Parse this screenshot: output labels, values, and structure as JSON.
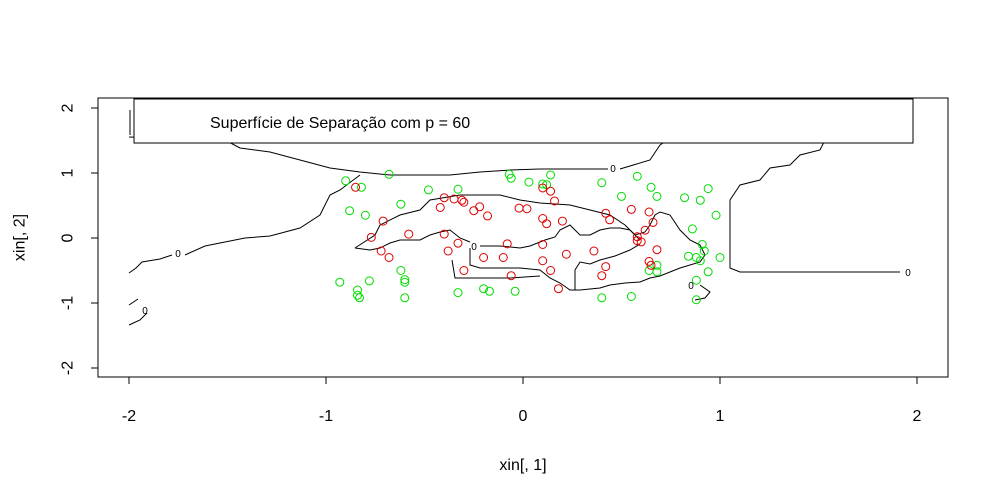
{
  "chart_data": {
    "type": "scatter",
    "title": "",
    "xlabel": "xin[, 1]",
    "ylabel": "xin[, 2]",
    "xlim": [
      -2.0,
      2.0
    ],
    "ylim": [
      -2.0,
      2.0
    ],
    "xticks": [
      "-2",
      "-1",
      "0",
      "1",
      "2"
    ],
    "yticks": [
      "-2",
      "-1",
      "0",
      "1",
      "2"
    ],
    "grid": false,
    "legend": {
      "text": "Superfície de Separação com p = 60",
      "placement": "top-left"
    },
    "contour_level_label": "0",
    "colors": {
      "class_red": "#dd0000",
      "class_green": "#00dd00",
      "contour": "#000000"
    },
    "series": [
      {
        "name": "green",
        "points": [
          [
            -0.9,
            0.88
          ],
          [
            -0.88,
            0.42
          ],
          [
            -0.82,
            0.78
          ],
          [
            -0.68,
            0.98
          ],
          [
            -0.8,
            0.35
          ],
          [
            -0.62,
            0.52
          ],
          [
            -0.48,
            0.74
          ],
          [
            -0.33,
            0.75
          ],
          [
            -0.07,
            0.98
          ],
          [
            -0.06,
            0.92
          ],
          [
            0.03,
            0.86
          ],
          [
            0.1,
            0.83
          ],
          [
            0.12,
            0.82
          ],
          [
            0.14,
            0.97
          ],
          [
            0.4,
            0.85
          ],
          [
            0.5,
            0.64
          ],
          [
            0.58,
            0.95
          ],
          [
            0.65,
            0.78
          ],
          [
            0.68,
            0.64
          ],
          [
            0.82,
            0.62
          ],
          [
            0.9,
            0.58
          ],
          [
            0.94,
            0.76
          ],
          [
            0.98,
            0.35
          ],
          [
            0.86,
            0.14
          ],
          [
            0.88,
            -0.3
          ],
          [
            0.91,
            -0.1
          ],
          [
            0.92,
            -0.2
          ],
          [
            0.94,
            -0.52
          ],
          [
            0.88,
            -0.65
          ],
          [
            0.84,
            -0.28
          ],
          [
            0.9,
            -0.35
          ],
          [
            1.0,
            -0.3
          ],
          [
            0.68,
            -0.42
          ],
          [
            0.68,
            -0.52
          ],
          [
            0.64,
            -0.5
          ],
          [
            -0.93,
            -0.68
          ],
          [
            -0.84,
            -0.8
          ],
          [
            -0.84,
            -0.88
          ],
          [
            -0.83,
            -0.92
          ],
          [
            -0.78,
            -0.66
          ],
          [
            -0.62,
            -0.5
          ],
          [
            -0.6,
            -0.64
          ],
          [
            -0.6,
            -0.68
          ],
          [
            -0.6,
            -0.92
          ],
          [
            -0.33,
            -0.84
          ],
          [
            -0.2,
            -0.78
          ],
          [
            -0.17,
            -0.82
          ],
          [
            -0.04,
            -0.82
          ],
          [
            0.4,
            -0.92
          ],
          [
            0.55,
            -0.9
          ],
          [
            0.88,
            -0.95
          ]
        ]
      },
      {
        "name": "red",
        "points": [
          [
            -0.85,
            0.78
          ],
          [
            -0.71,
            0.26
          ],
          [
            -0.77,
            0.01
          ],
          [
            -0.72,
            -0.2
          ],
          [
            -0.68,
            -0.3
          ],
          [
            -0.58,
            0.06
          ],
          [
            -0.42,
            0.47
          ],
          [
            -0.4,
            0.62
          ],
          [
            -0.35,
            0.6
          ],
          [
            -0.31,
            0.58
          ],
          [
            -0.3,
            0.55
          ],
          [
            -0.4,
            0.06
          ],
          [
            -0.38,
            -0.2
          ],
          [
            -0.33,
            -0.08
          ],
          [
            -0.25,
            0.42
          ],
          [
            -0.22,
            0.48
          ],
          [
            -0.18,
            0.34
          ],
          [
            -0.1,
            -0.3
          ],
          [
            -0.08,
            -0.09
          ],
          [
            -0.06,
            -0.58
          ],
          [
            -0.02,
            0.46
          ],
          [
            0.1,
            0.77
          ],
          [
            0.14,
            0.72
          ],
          [
            0.16,
            0.57
          ],
          [
            0.1,
            0.3
          ],
          [
            0.12,
            0.22
          ],
          [
            0.2,
            0.26
          ],
          [
            0.1,
            -0.1
          ],
          [
            0.1,
            -0.35
          ],
          [
            0.14,
            -0.5
          ],
          [
            0.18,
            -0.78
          ],
          [
            0.22,
            -0.25
          ],
          [
            0.36,
            -0.2
          ],
          [
            0.42,
            0.38
          ],
          [
            0.44,
            0.28
          ],
          [
            0.55,
            0.44
          ],
          [
            0.58,
            0.02
          ],
          [
            0.6,
            -0.06
          ],
          [
            0.62,
            0.12
          ],
          [
            0.64,
            0.4
          ],
          [
            0.66,
            0.24
          ],
          [
            0.68,
            -0.18
          ],
          [
            0.64,
            -0.36
          ],
          [
            0.65,
            -0.42
          ],
          [
            0.58,
            -0.04
          ],
          [
            0.42,
            -0.44
          ],
          [
            0.4,
            -0.58
          ],
          [
            0.02,
            0.45
          ],
          [
            -0.2,
            -0.3
          ],
          [
            -0.3,
            -0.5
          ]
        ]
      }
    ]
  }
}
